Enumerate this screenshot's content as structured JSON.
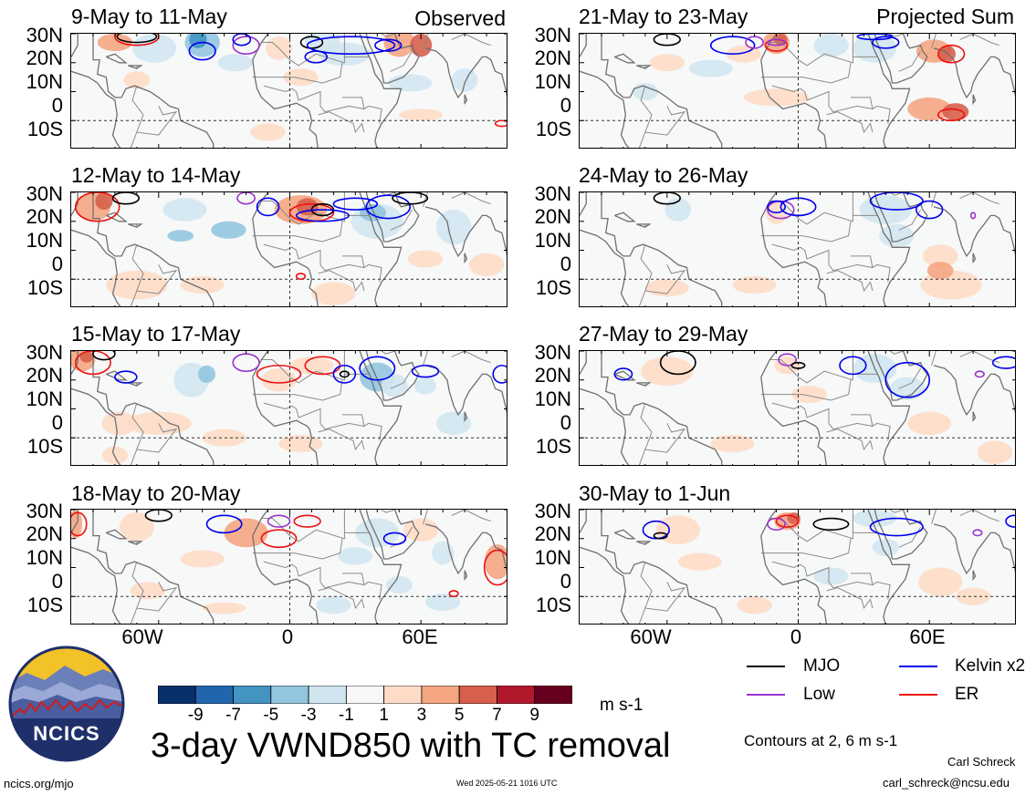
{
  "panels": {
    "left": [
      {
        "title": "9-May to 11-May",
        "corner": "Observed"
      },
      {
        "title": "12-May to 14-May",
        "corner": ""
      },
      {
        "title": "15-May to 17-May",
        "corner": ""
      },
      {
        "title": "18-May to 20-May",
        "corner": ""
      }
    ],
    "right": [
      {
        "title": "21-May to 23-May",
        "corner": "Projected Sum"
      },
      {
        "title": "24-May to 26-May",
        "corner": ""
      },
      {
        "title": "27-May to 29-May",
        "corner": ""
      },
      {
        "title": "30-May to 1-Jun",
        "corner": ""
      }
    ]
  },
  "lat_labels": [
    "30N",
    "20N",
    "10N",
    "0",
    "10S"
  ],
  "lon_labels": [
    "60W",
    "0",
    "60E"
  ],
  "colorbar": {
    "ticks": [
      "-9",
      "-7",
      "-5",
      "-3",
      "-1",
      "1",
      "3",
      "5",
      "7",
      "9"
    ],
    "colors": [
      "#08306b",
      "#2166ac",
      "#4393c3",
      "#92c5de",
      "#d1e5f0",
      "#f7f7f7",
      "#fddbc7",
      "#f4a582",
      "#d6604d",
      "#b2182b",
      "#67001f"
    ],
    "units": "m s-1"
  },
  "legend": {
    "items": [
      {
        "label": "MJO",
        "color": "#000000"
      },
      {
        "label": "Kelvin x2",
        "color": "#0000ee"
      },
      {
        "label": "Low",
        "color": "#9933cc"
      },
      {
        "label": "ER",
        "color": "#ee1111"
      }
    ],
    "note": "Contours at 2, 6 m s-1"
  },
  "title": "3-day VWND850 with TC removal",
  "footer": {
    "left": "ncics.org/mjo",
    "center": "Wed 2025-05-21 1016 UTC",
    "author": "Carl Schreck",
    "email": "carl_schreck@ncsu.edu"
  },
  "logo": {
    "text": "NCICS"
  }
}
